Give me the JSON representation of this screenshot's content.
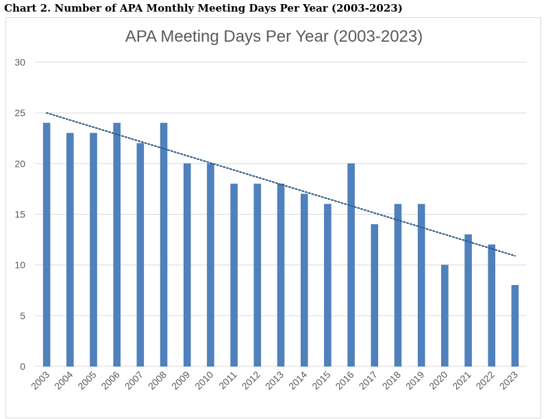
{
  "caption": "Chart 2. Number of APA Monthly Meeting Days Per Year (2003-2023)",
  "chart_data": {
    "type": "bar",
    "title": "APA Meeting Days Per Year (2003-2023)",
    "xlabel": "",
    "ylabel": "",
    "categories": [
      "2003",
      "2004",
      "2005",
      "2006",
      "2007",
      "2008",
      "2009",
      "2010",
      "2011",
      "2012",
      "2013",
      "2014",
      "2015",
      "2016",
      "2017",
      "2018",
      "2019",
      "2020",
      "2021",
      "2022",
      "2023"
    ],
    "values": [
      24,
      23,
      23,
      24,
      22,
      24,
      20,
      20,
      18,
      18,
      18,
      17,
      16,
      20,
      14,
      16,
      16,
      10,
      13,
      12,
      8
    ],
    "ylim": [
      0,
      30
    ],
    "yticks": [
      0,
      5,
      10,
      15,
      20,
      25,
      30
    ],
    "trendline": {
      "type": "linear",
      "style": "dotted",
      "start": 25,
      "end": 10.9
    },
    "grid": true,
    "legend": "none",
    "colors": {
      "bar": "#4f81bd",
      "bar_edge": "#3e6da6",
      "trendline": "#2e5c8a",
      "gridline": "#d9d9d9",
      "tick_label": "#595959"
    }
  }
}
